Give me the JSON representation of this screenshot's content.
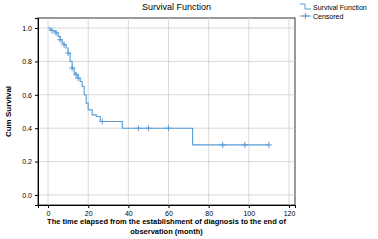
{
  "chart_data": {
    "type": "survival",
    "title": "Survival Function",
    "x_label": [
      "The time elapsed from the establishment of diagnosis to the end of",
      "observation (month)"
    ],
    "y_label": "Cum Survival",
    "xlim": [
      -5,
      123
    ],
    "xticks": [
      0,
      20,
      40,
      60,
      80,
      100,
      120
    ],
    "ylim": [
      -0.06,
      1.06
    ],
    "yticks": [
      {
        "value": 0,
        "label": "0.0"
      },
      {
        "value": 0.2,
        "label": "0.2"
      },
      {
        "value": 0.4,
        "label": "0.4"
      },
      {
        "value": 0.6,
        "label": "0.6"
      },
      {
        "value": 0.8,
        "label": "0.8"
      },
      {
        "value": 1.0,
        "label": "1.0"
      }
    ],
    "grid": true,
    "legend": "right",
    "series": [
      {
        "name": "Survival Function",
        "type": "step",
        "color": "#5b9bd5",
        "line_style": "solid",
        "x": [
          0,
          1,
          2,
          3,
          4,
          5,
          6,
          7,
          8,
          9,
          10,
          11,
          12,
          13,
          14,
          15,
          16,
          17,
          18,
          19,
          20,
          22,
          24,
          26,
          37,
          72,
          110
        ],
        "values": [
          1.0,
          0.99,
          0.985,
          0.98,
          0.97,
          0.95,
          0.93,
          0.91,
          0.9,
          0.88,
          0.85,
          0.8,
          0.76,
          0.73,
          0.72,
          0.7,
          0.68,
          0.65,
          0.6,
          0.55,
          0.51,
          0.48,
          0.47,
          0.44,
          0.4,
          0.3,
          0.3
        ]
      },
      {
        "name": "Censored",
        "type": "scatter",
        "color": "#5b9bd5",
        "marker": "plus",
        "x": [
          2,
          4,
          6,
          8,
          10,
          12,
          14,
          15,
          27,
          45,
          50,
          60,
          87,
          98,
          110
        ],
        "values": [
          0.985,
          0.97,
          0.93,
          0.9,
          0.85,
          0.76,
          0.72,
          0.7,
          0.44,
          0.4,
          0.4,
          0.4,
          0.3,
          0.3,
          0.3
        ]
      }
    ]
  }
}
